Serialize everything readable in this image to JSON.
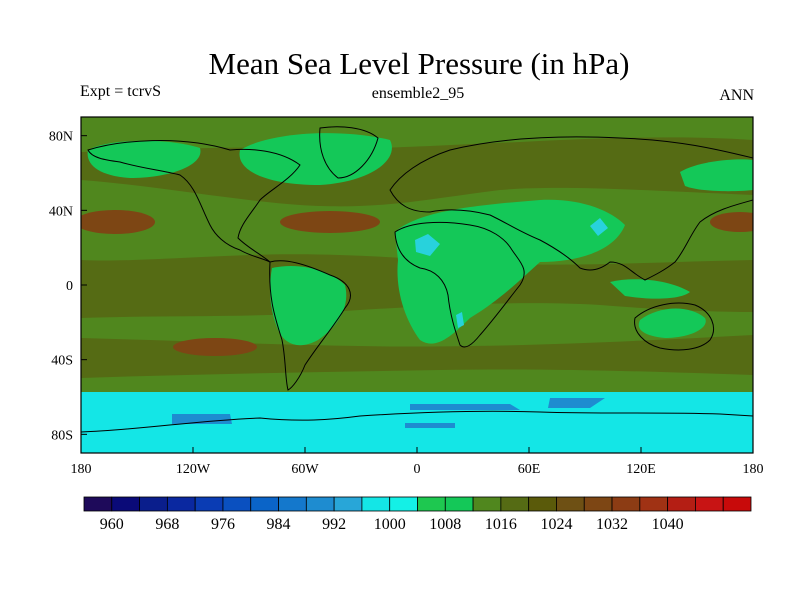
{
  "title": "Mean Sea Level Pressure (in hPa)",
  "subtitle_left": "Expt = tcrvS",
  "subtitle_center": "ensemble2_95",
  "subtitle_right": "ANN",
  "lat_ticks": [
    "80N",
    "40N",
    "0",
    "40S",
    "80S"
  ],
  "lon_ticks": [
    "180",
    "120W",
    "60W",
    "0",
    "60E",
    "120E",
    "180"
  ],
  "colorbar": {
    "colors": [
      "#1e0a5a",
      "#0a0a78",
      "#0a1e8c",
      "#0a28a0",
      "#0a3cb4",
      "#0a50c0",
      "#0a64c8",
      "#1478cc",
      "#1e8cd0",
      "#28a6d8",
      "#14e6e6",
      "#14f0e6",
      "#1ec850",
      "#14c858",
      "#50871e",
      "#556b14",
      "#5a5a0a",
      "#6e5014",
      "#7d4614",
      "#8c3c14",
      "#a03214",
      "#b41e14",
      "#c81414",
      "#c80a0a"
    ],
    "labels": [
      "960",
      "968",
      "976",
      "984",
      "992",
      "1000",
      "1008",
      "1016",
      "1024",
      "1032",
      "1040"
    ]
  },
  "map_colors": {
    "base": "#556b14",
    "band_1012": "#50871e",
    "low_1004": "#14c858",
    "high_1024": "#7d4614",
    "antarctic_992": "#14e6e6",
    "deep_low_984": "#1e8cd0",
    "thermal_996": "#28d2dc",
    "coast": "#000000"
  }
}
